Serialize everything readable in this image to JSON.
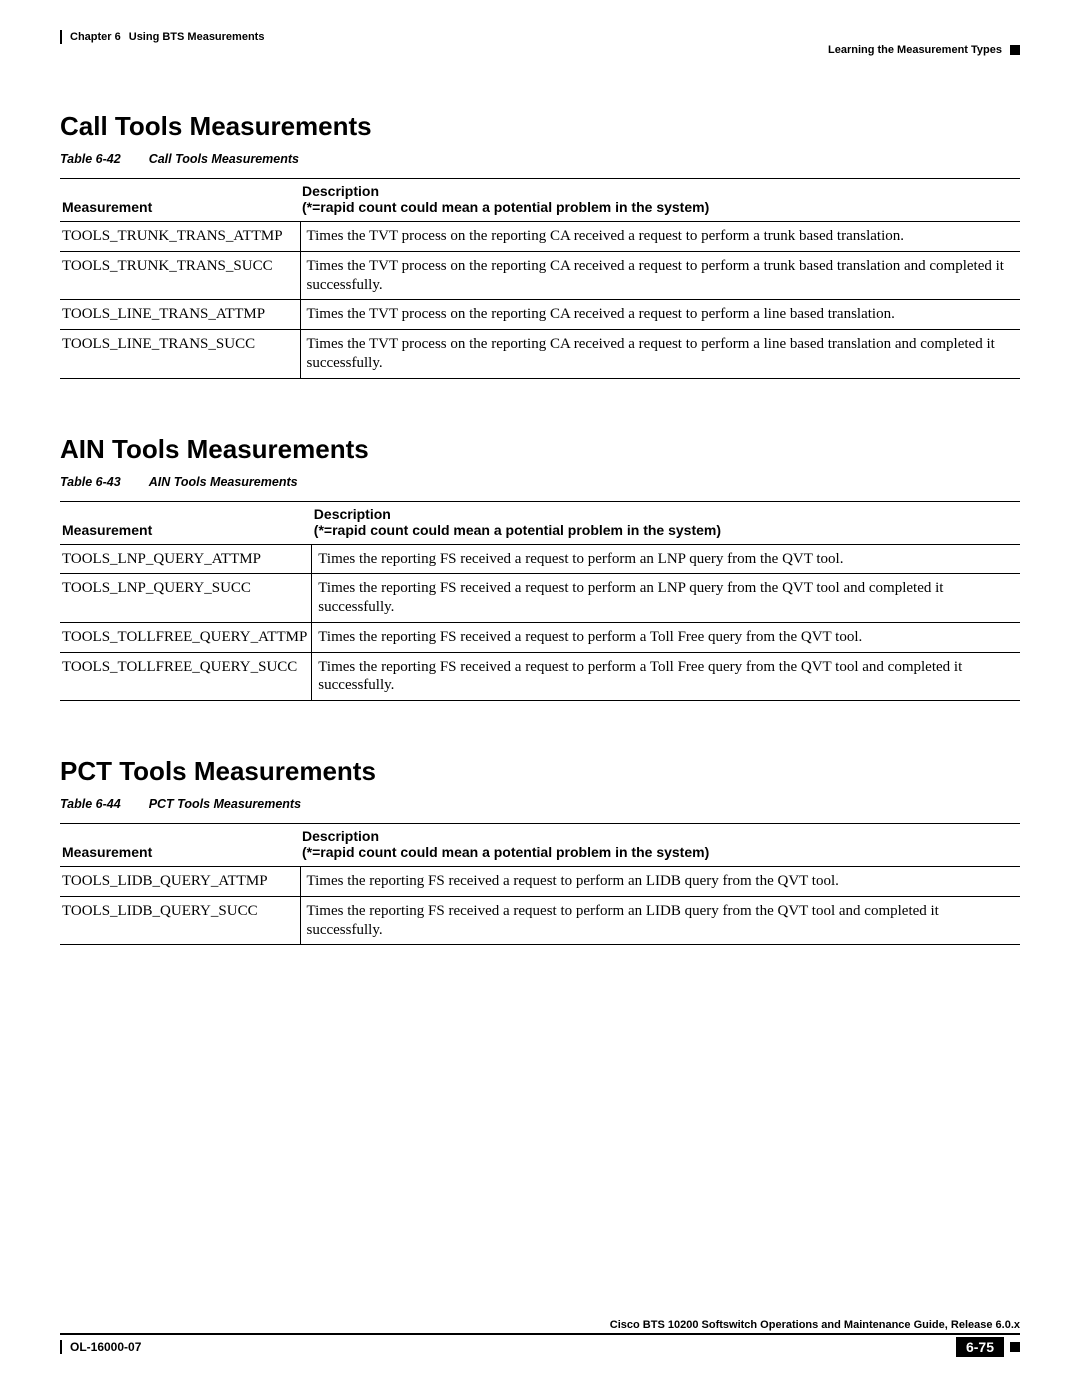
{
  "header": {
    "chapter": "Chapter 6",
    "chapter_title": "Using BTS Measurements",
    "section_right": "Learning the Measurement Types"
  },
  "sections": [
    {
      "heading": "Call Tools Measurements",
      "table_label": "Table 6-42",
      "table_title": "Call Tools Measurements",
      "col1_header": "Measurement",
      "col2_header_line1": "Description",
      "col2_header_line2": "(*=rapid count could mean a potential problem in the system)",
      "rows": [
        {
          "m": "TOOLS_TRUNK_TRANS_ATTMP",
          "d": "Times the TVT process on the reporting CA received a request to perform a trunk based translation."
        },
        {
          "m": "TOOLS_TRUNK_TRANS_SUCC",
          "d": "Times the TVT process on the reporting CA received a request to perform a trunk based translation and completed it successfully."
        },
        {
          "m": "TOOLS_LINE_TRANS_ATTMP",
          "d": "Times the TVT process on the reporting CA received a request to perform a line based translation."
        },
        {
          "m": "TOOLS_LINE_TRANS_SUCC",
          "d": "Times the TVT process on the reporting CA received a request to perform a line based translation and completed it successfully."
        }
      ]
    },
    {
      "heading": "AIN Tools Measurements",
      "table_label": "Table 6-43",
      "table_title": "AIN Tools Measurements",
      "col1_header": "Measurement",
      "col2_header_line1": "Description",
      "col2_header_line2": "(*=rapid count could mean a potential problem in the system)",
      "rows": [
        {
          "m": "TOOLS_LNP_QUERY_ATTMP",
          "d": "Times the reporting FS received a request to perform an LNP query from the QVT tool."
        },
        {
          "m": "TOOLS_LNP_QUERY_SUCC",
          "d": "Times the reporting FS received a request to perform an LNP query from the QVT tool and completed it successfully."
        },
        {
          "m": "TOOLS_TOLLFREE_QUERY_ATTMP",
          "d": "Times the reporting FS received a request to perform a Toll Free query from the QVT tool."
        },
        {
          "m": "TOOLS_TOLLFREE_QUERY_SUCC",
          "d": "Times the reporting FS received a request to perform a Toll Free query from the QVT tool and completed it successfully."
        }
      ]
    },
    {
      "heading": "PCT Tools Measurements",
      "table_label": "Table 6-44",
      "table_title": "PCT Tools Measurements",
      "col1_header": "Measurement",
      "col2_header_line1": "Description",
      "col2_header_line2": "(*=rapid count could mean a potential problem in the system)",
      "rows": [
        {
          "m": "TOOLS_LIDB_QUERY_ATTMP",
          "d": "Times the reporting FS received a request to perform an LIDB query from the QVT tool."
        },
        {
          "m": "TOOLS_LIDB_QUERY_SUCC",
          "d": "Times the reporting FS received a request to perform an LIDB query from the QVT tool and completed it successfully."
        }
      ]
    }
  ],
  "footer": {
    "guide": "Cisco BTS 10200 Softswitch Operations and Maintenance Guide, Release 6.0.x",
    "doc_id": "OL-16000-07",
    "page_num": "6-75"
  }
}
